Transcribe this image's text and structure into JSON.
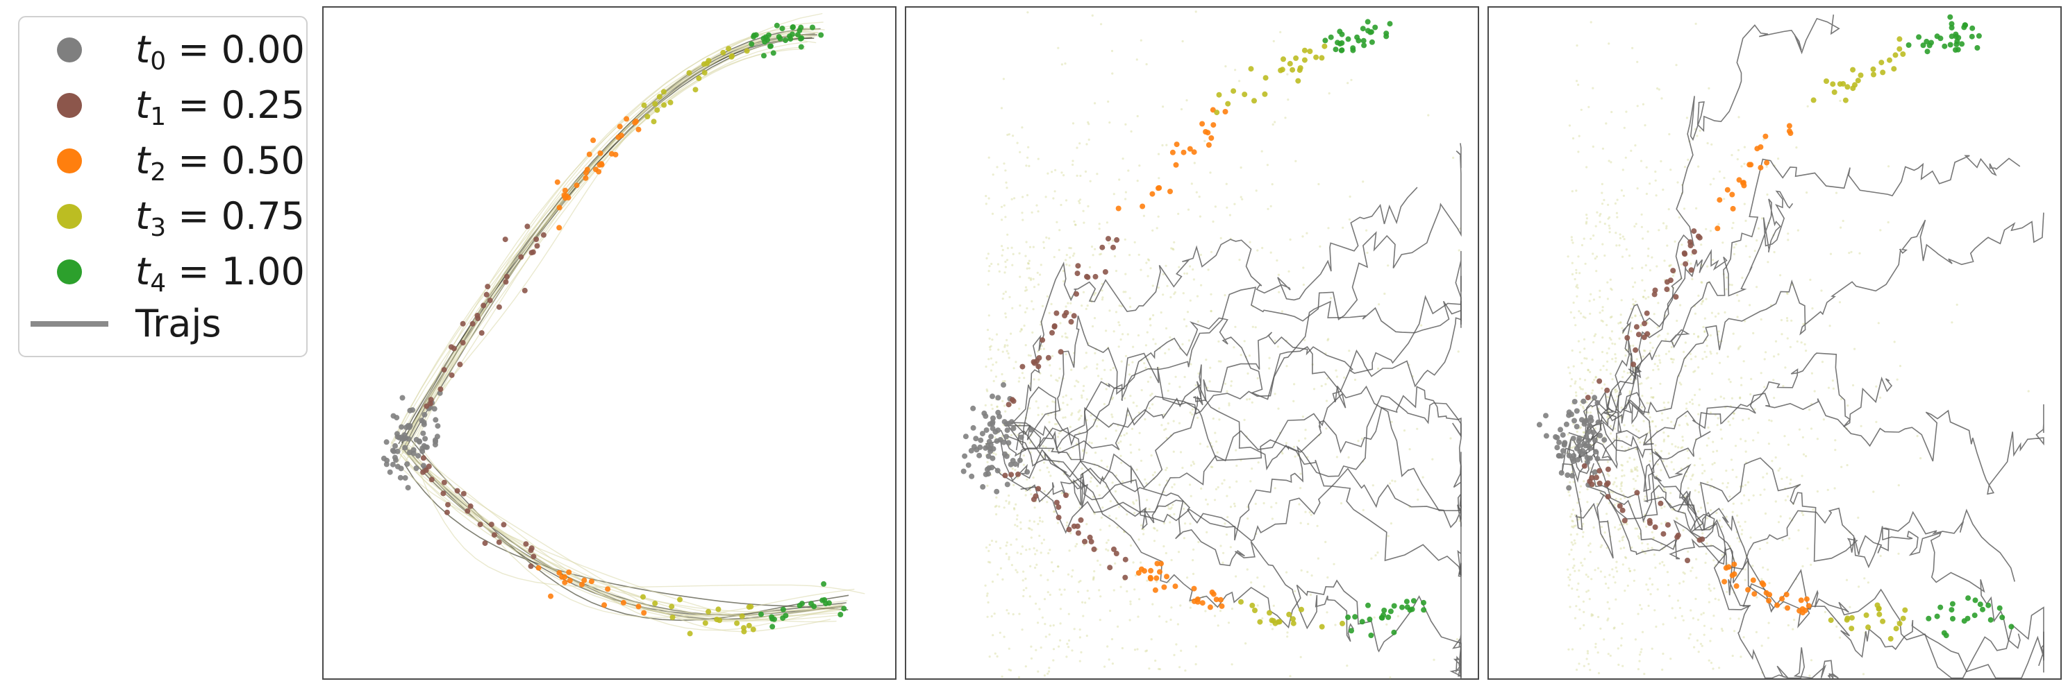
{
  "colors": {
    "t0": "#7f7f7f",
    "t1": "#8c564b",
    "t2": "#ff7f0e",
    "t3": "#bcbd22",
    "t4": "#2ca02c",
    "traj_dark": "#3d3d2a",
    "traj_light": "#d9d7a8",
    "traj_gray": "#555555",
    "density": "#c9cf7a"
  },
  "legend": {
    "entries": [
      {
        "sym": "t",
        "sub": "0",
        "eq": " = 0.00",
        "color_key": "t0",
        "icon": "dot-icon"
      },
      {
        "sym": "t",
        "sub": "1",
        "eq": " = 0.25",
        "color_key": "t1",
        "icon": "dot-icon"
      },
      {
        "sym": "t",
        "sub": "2",
        "eq": " = 0.50",
        "color_key": "t2",
        "icon": "dot-icon"
      },
      {
        "sym": "t",
        "sub": "3",
        "eq": " = 0.75",
        "color_key": "t3",
        "icon": "dot-icon"
      },
      {
        "sym": "t",
        "sub": "4",
        "eq": " = 1.00",
        "color_key": "t4",
        "icon": "dot-icon"
      },
      {
        "label": "Trajs",
        "icon": "line-icon"
      }
    ]
  },
  "chart_data": [
    {
      "type": "scatter",
      "title": "",
      "xlabel": "",
      "ylabel": "",
      "ticks": "none",
      "legend_placement": "left-outside",
      "series": [
        {
          "name": "t0",
          "time": 0.0,
          "points": [
            [
              0.1,
              0.33
            ],
            [
              0.08,
              0.32
            ],
            [
              0.09,
              0.34
            ],
            [
              0.11,
              0.35
            ],
            [
              0.12,
              0.33
            ],
            [
              0.1,
              0.31
            ],
            [
              0.07,
              0.33
            ],
            [
              0.11,
              0.3
            ],
            [
              0.13,
              0.32
            ],
            [
              0.09,
              0.36
            ],
            [
              0.1,
              0.28
            ]
          ]
        },
        {
          "name": "t1",
          "time": 0.25,
          "points": [
            [
              0.22,
              0.68
            ],
            [
              0.2,
              0.62
            ],
            [
              0.18,
              0.56
            ],
            [
              0.16,
              0.5
            ],
            [
              0.14,
              0.45
            ],
            [
              0.13,
              0.4
            ],
            [
              0.16,
              0.25
            ],
            [
              0.2,
              0.2
            ],
            [
              0.24,
              0.16
            ],
            [
              0.28,
              0.12
            ],
            [
              0.32,
              0.1
            ]
          ]
        },
        {
          "name": "t2",
          "time": 0.5,
          "points": [
            [
              0.52,
              0.86
            ],
            [
              0.46,
              0.8
            ],
            [
              0.4,
              0.74
            ],
            [
              0.34,
              0.7
            ],
            [
              0.38,
              0.09
            ],
            [
              0.43,
              0.07
            ],
            [
              0.48,
              0.06
            ],
            [
              0.52,
              0.05
            ]
          ]
        },
        {
          "name": "t3",
          "time": 0.75,
          "points": [
            [
              0.86,
              0.96
            ],
            [
              0.8,
              0.93
            ],
            [
              0.74,
              0.9
            ],
            [
              0.68,
              0.87
            ],
            [
              0.58,
              0.04
            ],
            [
              0.63,
              0.04
            ],
            [
              0.68,
              0.04
            ],
            [
              0.72,
              0.05
            ],
            [
              0.76,
              0.05
            ]
          ]
        },
        {
          "name": "t4",
          "time": 1.0,
          "points": [
            [
              0.92,
              0.98
            ],
            [
              0.96,
              0.97
            ],
            [
              0.99,
              0.95
            ],
            [
              1.0,
              0.91
            ],
            [
              0.8,
              0.05
            ],
            [
              0.86,
              0.07
            ],
            [
              0.92,
              0.09
            ],
            [
              0.98,
              0.11
            ],
            [
              1.0,
              0.12
            ]
          ]
        }
      ]
    },
    {
      "type": "scatter",
      "title": "",
      "xlabel": "",
      "ylabel": "",
      "ticks": "none",
      "series_ref": "same points as panel 1, with background density cloud and gray stochastic trajectories"
    },
    {
      "type": "scatter",
      "title": "",
      "xlabel": "",
      "ylabel": "",
      "ticks": "none",
      "series_ref": "same points as panel 1, with background density cloud and gray stochastic trajectories"
    }
  ]
}
